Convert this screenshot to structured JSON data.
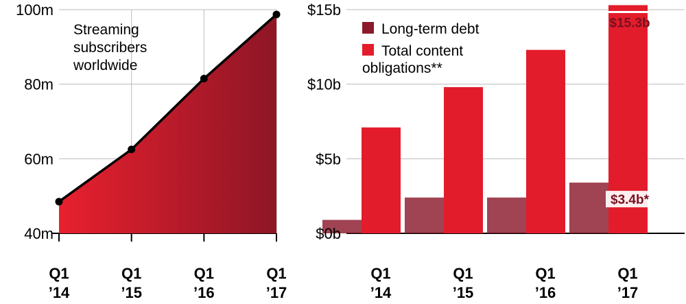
{
  "colors": {
    "area_light": "#e8202e",
    "area_dark": "#8e1626",
    "debt": "#8b1a2c",
    "content": "#e31c2b",
    "grid": "#bbbbbb",
    "callout_text": "#7a1020"
  },
  "chart_data": [
    {
      "type": "area",
      "title": "Streaming subscribers worldwide",
      "title_lines": [
        "Streaming",
        "subscribers",
        "worldwide"
      ],
      "categories": [
        [
          "Q1",
          "’14"
        ],
        [
          "Q1",
          "’15"
        ],
        [
          "Q1",
          "’16"
        ],
        [
          "Q1",
          "’17"
        ]
      ],
      "values": [
        48.5,
        62.5,
        81.5,
        98.7
      ],
      "ylim": [
        40,
        100
      ],
      "yticks": [
        {
          "value": 40,
          "label": "40m"
        },
        {
          "value": 60,
          "label": "60m"
        },
        {
          "value": 80,
          "label": "80m"
        },
        {
          "value": 100,
          "label": "100m"
        }
      ],
      "grid": true
    },
    {
      "type": "bar",
      "categories": [
        [
          "Q1",
          "’14"
        ],
        [
          "Q1",
          "’15"
        ],
        [
          "Q1",
          "’16"
        ],
        [
          "Q1",
          "’17"
        ]
      ],
      "series": [
        {
          "name": "Long-term debt",
          "values": [
            0.9,
            2.4,
            2.4,
            3.4
          ]
        },
        {
          "name": "Total content obligations**",
          "name_lines": [
            "Total content",
            "obligations**"
          ],
          "values": [
            7.1,
            9.8,
            12.3,
            15.3
          ]
        }
      ],
      "ylim": [
        0,
        15
      ],
      "yticks": [
        {
          "value": 0,
          "label": "$0b"
        },
        {
          "value": 5,
          "label": "$5b"
        },
        {
          "value": 10,
          "label": "$10b"
        },
        {
          "value": 15,
          "label": "$15b"
        }
      ],
      "annotations": [
        {
          "series": 1,
          "index": 3,
          "text": "$15.3b"
        },
        {
          "series": 0,
          "index": 3,
          "text": "$3.4b*"
        }
      ],
      "legend": "top-left",
      "grid": true
    }
  ]
}
